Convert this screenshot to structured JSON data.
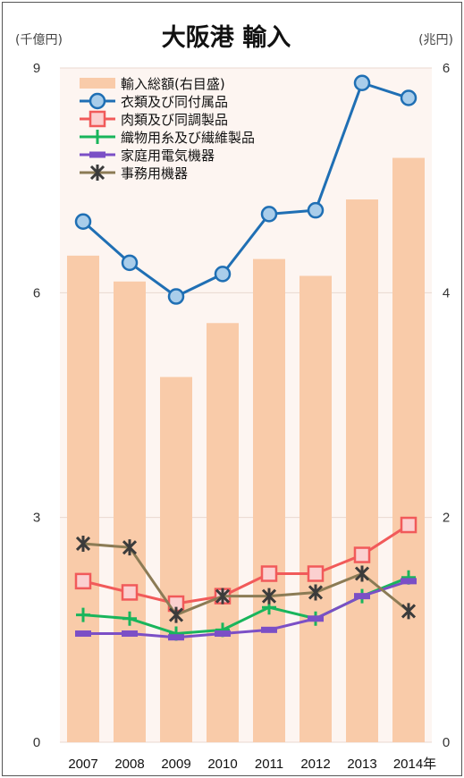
{
  "chart_data": {
    "type": "bar+line",
    "title": "大阪港 輸入",
    "left_axis_unit": "(千億円)",
    "right_axis_unit": "(兆円)",
    "left_ticks": [
      "0",
      "3",
      "6",
      "9"
    ],
    "right_ticks": [
      "0",
      "2",
      "4",
      "6"
    ],
    "ylim_left": [
      0,
      9
    ],
    "ylim_right": [
      0,
      6
    ],
    "categories": [
      "2007",
      "2008",
      "2009",
      "2010",
      "2011",
      "2012",
      "2013",
      "2014年"
    ],
    "bar_series": {
      "name": "輸入総額(右目盛)",
      "axis": "right",
      "color": "#f9cba9",
      "values": [
        4.33,
        4.1,
        3.25,
        3.73,
        4.3,
        4.15,
        4.83,
        5.2
      ]
    },
    "series": [
      {
        "name": "衣類及び同付属品",
        "color": "#1f6fb4",
        "fill": "#a9cdea",
        "marker": "circle",
        "values": [
          6.95,
          6.4,
          5.95,
          6.25,
          7.05,
          7.1,
          8.8,
          8.6
        ]
      },
      {
        "name": "肉類及び同調製品",
        "color": "#f15a5a",
        "fill": "#fbd0d0",
        "marker": "square",
        "values": [
          2.15,
          2.0,
          1.85,
          1.95,
          2.25,
          2.25,
          2.5,
          2.9
        ]
      },
      {
        "name": "織物用糸及び繊維製品",
        "color": "#19b55c",
        "fill": "#19b55c",
        "marker": "plus",
        "values": [
          1.7,
          1.65,
          1.45,
          1.5,
          1.8,
          1.65,
          1.95,
          2.2
        ]
      },
      {
        "name": "家庭用電気機器",
        "color": "#7b4fc6",
        "fill": "#7b4fc6",
        "marker": "dash",
        "values": [
          1.45,
          1.45,
          1.4,
          1.45,
          1.5,
          1.65,
          1.95,
          2.15
        ]
      },
      {
        "name": "事務用機器",
        "color": "#8b7b55",
        "fill": "#3b3b3b",
        "marker": "star",
        "values": [
          2.65,
          2.6,
          1.7,
          1.95,
          1.95,
          2.0,
          2.25,
          1.75
        ]
      }
    ],
    "legend_position": "top-left",
    "grid": true
  }
}
